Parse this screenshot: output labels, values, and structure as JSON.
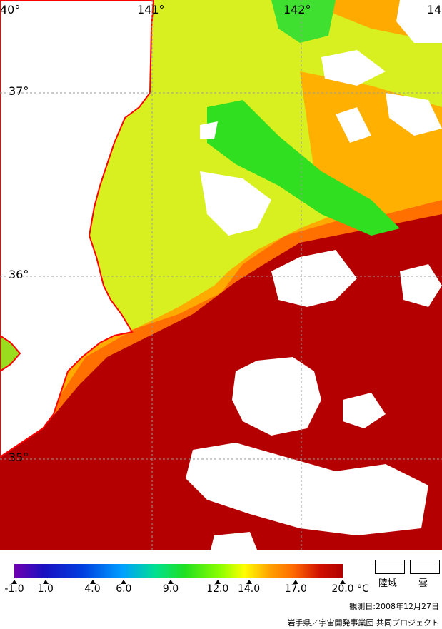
{
  "map": {
    "lon_labels": [
      "40°",
      "141°",
      "142°",
      "14"
    ],
    "lat_labels": [
      "37°",
      "36°",
      "35°"
    ]
  },
  "legend": {
    "ticks": [
      "-1.0",
      "1.0",
      "4.0",
      "6.0",
      "9.0",
      "12.0",
      "14.0",
      "17.0",
      "20.0"
    ],
    "tick_values": [
      -1.0,
      1.0,
      4.0,
      6.0,
      9.0,
      12.0,
      14.0,
      17.0,
      20.0
    ],
    "unit": "°C",
    "land_label": "陸域",
    "cloud_label": "雲"
  },
  "observation_date": "観測日:2008年12月27日",
  "credit": "岩手県／宇宙開発事業団 共同プロジェクト",
  "colors": {
    "coast": "#ff0000",
    "grid": "#9a9a9a",
    "sea_warm": "#b40000",
    "sea_mid": "#ff7a00",
    "sea_cool": "#c8ff00",
    "sea_cold": "#20e020",
    "land_cloud": "#ffffff"
  }
}
